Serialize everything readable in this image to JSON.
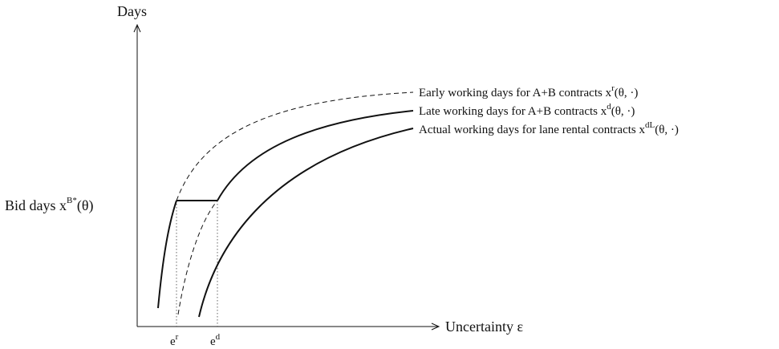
{
  "axes": {
    "y_label": "Days",
    "x_label": "Uncertainty ε"
  },
  "bid_days": {
    "text": "Bid days x",
    "sup": "B*",
    "args": "(θ)"
  },
  "x_ticks": [
    {
      "base": "e",
      "sup": "r"
    },
    {
      "base": "e",
      "sup": "d"
    }
  ],
  "curves": [
    {
      "text": "Early working days for A+B contracts x",
      "sup": "r",
      "args": "(θ, ·)"
    },
    {
      "text": "Late working days for A+B contracts x",
      "sup": "d",
      "args": "(θ, ·)"
    },
    {
      "text": "Actual working days for lane rental contracts x",
      "sup": "dL",
      "args": "(θ, ·)"
    }
  ]
}
